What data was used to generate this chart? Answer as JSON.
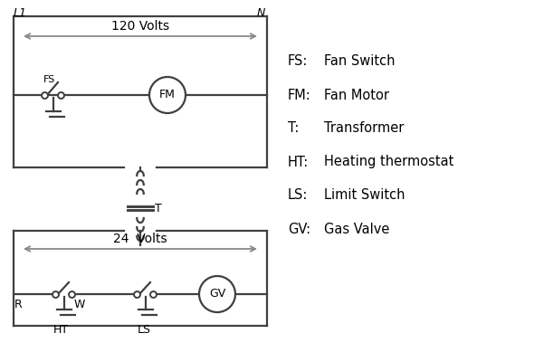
{
  "background_color": "#ffffff",
  "line_color": "#404040",
  "text_color": "#000000",
  "arrow_color": "#888888",
  "legend_items": [
    [
      "FS:",
      "Fan Switch"
    ],
    [
      "FM:",
      "Fan Motor"
    ],
    [
      "T:",
      "Transformer"
    ],
    [
      "HT:",
      "Heating thermostat"
    ],
    [
      "LS:",
      "Limit Switch"
    ],
    [
      "GV:",
      "Gas Valve"
    ]
  ],
  "label_L1": "L1",
  "label_N": "N",
  "label_120V": "120 Volts",
  "label_24V": "24  Volts",
  "label_T": "T",
  "label_FS": "FS",
  "label_FM": "FM",
  "label_GV": "GV",
  "label_R": "R",
  "label_W": "W",
  "label_HT": "HT",
  "label_LS": "LS"
}
